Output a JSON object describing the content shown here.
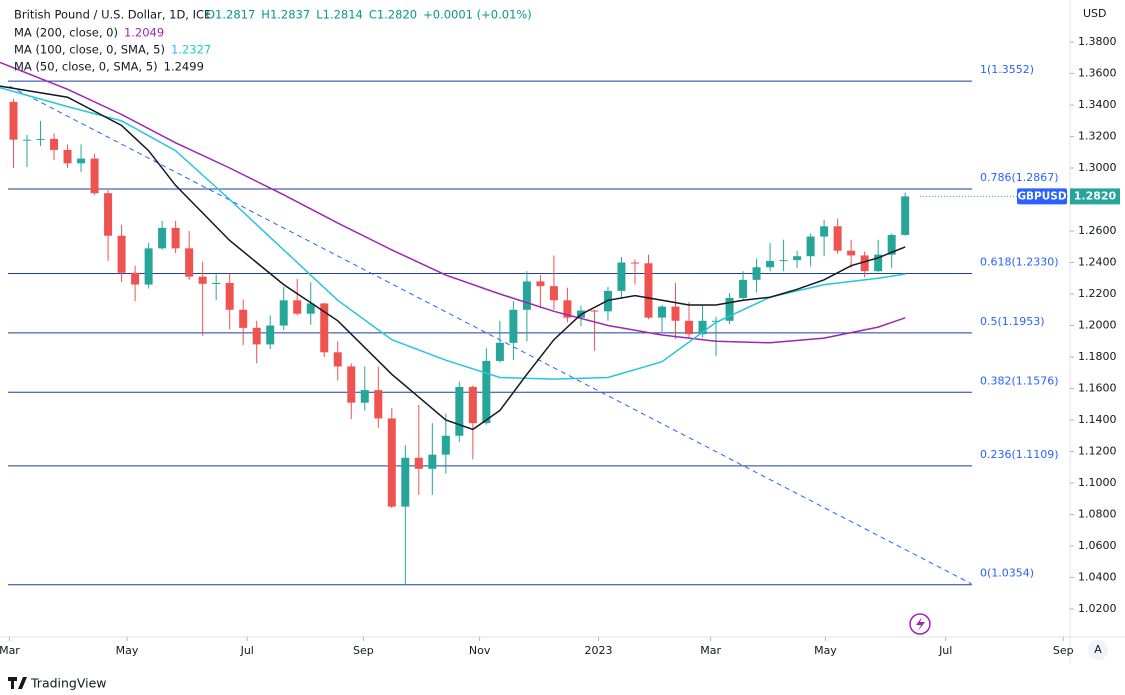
{
  "header": {
    "symbol": "British Pound / U.S. Dollar, 1D, ICE",
    "quote": [
      "O1.2817",
      "H1.2837",
      "L1.2814",
      "C1.2820",
      "+0.0001 (+0.01%)"
    ],
    "currency": "USD",
    "symbol_tag": "GBPUSD",
    "price_tag": "1.2820"
  },
  "footer": {
    "brand": "TradingView",
    "auto": "A"
  },
  "chart_data": {
    "type": "candlestick",
    "xlim": [
      -1,
      78.2
    ],
    "ylim": [
      1.0022,
      1.4067
    ],
    "xticks": [
      {
        "value": -0.3,
        "label": "Mar"
      },
      {
        "value": 8.4,
        "label": "May"
      },
      {
        "value": 17.3,
        "label": "Jul"
      },
      {
        "value": 25.9,
        "label": "Sep"
      },
      {
        "value": 34.5,
        "label": "Nov"
      },
      {
        "value": 43.3,
        "label": "2023"
      },
      {
        "value": 51.6,
        "label": "Mar"
      },
      {
        "value": 60.1,
        "label": "May"
      },
      {
        "value": 69,
        "label": "Jul"
      },
      {
        "value": 77.7,
        "label": "Sep"
      }
    ],
    "yticks": [
      {
        "value": 1.02,
        "label": "1.0200"
      },
      {
        "value": 1.04,
        "label": "1.0400"
      },
      {
        "value": 1.06,
        "label": "1.0600"
      },
      {
        "value": 1.08,
        "label": "1.0800"
      },
      {
        "value": 1.1,
        "label": "1.1000"
      },
      {
        "value": 1.12,
        "label": "1.1200"
      },
      {
        "value": 1.14,
        "label": "1.1400"
      },
      {
        "value": 1.16,
        "label": "1.1600"
      },
      {
        "value": 1.18,
        "label": "1.1800"
      },
      {
        "value": 1.2,
        "label": "1.2000"
      },
      {
        "value": 1.22,
        "label": "1.2200"
      },
      {
        "value": 1.24,
        "label": "1.2400"
      },
      {
        "value": 1.26,
        "label": "1.2600"
      },
      {
        "value": 1.28,
        "label": "1.2800"
      },
      {
        "value": 1.3,
        "label": "1.3000"
      },
      {
        "value": 1.32,
        "label": "1.3200"
      },
      {
        "value": 1.34,
        "label": "1.3400"
      },
      {
        "value": 1.36,
        "label": "1.3600"
      },
      {
        "value": 1.38,
        "label": "1.3800"
      }
    ],
    "up_color": "#26a69a",
    "down_color": "#ef5350",
    "ohlc": [
      [
        1.342,
        1.344,
        1.3,
        1.318
      ],
      [
        1.318,
        1.321,
        1.3005,
        1.318
      ],
      [
        1.318,
        1.33,
        1.314,
        1.3185
      ],
      [
        1.3185,
        1.322,
        1.305,
        1.3115
      ],
      [
        1.3115,
        1.315,
        1.3,
        1.303
      ],
      [
        1.303,
        1.315,
        1.2975,
        1.306
      ],
      [
        1.306,
        1.309,
        1.283,
        1.284
      ],
      [
        1.284,
        1.286,
        1.241,
        1.257
      ],
      [
        1.257,
        1.264,
        1.2275,
        1.2335
      ],
      [
        1.2335,
        1.238,
        1.2155,
        1.226
      ],
      [
        1.226,
        1.2525,
        1.2235,
        1.249
      ],
      [
        1.249,
        1.2665,
        1.248,
        1.262
      ],
      [
        1.262,
        1.2665,
        1.246,
        1.249
      ],
      [
        1.249,
        1.26,
        1.229,
        1.231
      ],
      [
        1.231,
        1.2405,
        1.1935,
        1.2265
      ],
      [
        1.2265,
        1.2325,
        1.216,
        1.227
      ],
      [
        1.227,
        1.233,
        1.1975,
        1.21
      ],
      [
        1.21,
        1.2165,
        1.1875,
        1.1985
      ],
      [
        1.1985,
        1.203,
        1.176,
        1.188
      ],
      [
        1.188,
        1.2065,
        1.185,
        1.2
      ],
      [
        1.2,
        1.2245,
        1.197,
        1.216
      ],
      [
        1.216,
        1.2295,
        1.2065,
        1.2075
      ],
      [
        1.2075,
        1.2275,
        1.2005,
        1.214
      ],
      [
        1.214,
        1.2145,
        1.18,
        1.183
      ],
      [
        1.183,
        1.19,
        1.165,
        1.174
      ],
      [
        1.174,
        1.176,
        1.1405,
        1.151
      ],
      [
        1.151,
        1.174,
        1.146,
        1.159
      ],
      [
        1.159,
        1.174,
        1.135,
        1.141
      ],
      [
        1.141,
        1.1475,
        1.084,
        1.085
      ],
      [
        1.085,
        1.124,
        1.0354,
        1.116
      ],
      [
        1.116,
        1.1495,
        1.0925,
        1.109
      ],
      [
        1.109,
        1.138,
        1.0925,
        1.118
      ],
      [
        1.118,
        1.144,
        1.106,
        1.13
      ],
      [
        1.13,
        1.1645,
        1.126,
        1.161
      ],
      [
        1.161,
        1.162,
        1.115,
        1.138
      ],
      [
        1.138,
        1.1855,
        1.137,
        1.1775
      ],
      [
        1.1775,
        1.203,
        1.1765,
        1.189
      ],
      [
        1.189,
        1.2155,
        1.178,
        1.21
      ],
      [
        1.21,
        1.2345,
        1.19,
        1.228
      ],
      [
        1.228,
        1.232,
        1.211,
        1.225
      ],
      [
        1.225,
        1.2445,
        1.21,
        1.216
      ],
      [
        1.216,
        1.224,
        1.202,
        1.205
      ],
      [
        1.205,
        1.2125,
        1.1995,
        1.2095
      ],
      [
        1.2095,
        1.21,
        1.184,
        1.209
      ],
      [
        1.209,
        1.2245,
        1.203,
        1.222
      ],
      [
        1.222,
        1.2435,
        1.217,
        1.24
      ],
      [
        1.24,
        1.242,
        1.226,
        1.2395
      ],
      [
        1.2395,
        1.245,
        1.204,
        1.205
      ],
      [
        1.205,
        1.213,
        1.196,
        1.212
      ],
      [
        1.212,
        1.227,
        1.1915,
        1.203
      ],
      [
        1.203,
        1.215,
        1.1925,
        1.1945
      ],
      [
        1.1945,
        1.213,
        1.1925,
        1.203
      ],
      [
        1.203,
        1.2055,
        1.1805,
        1.203
      ],
      [
        1.203,
        1.2205,
        1.201,
        1.2175
      ],
      [
        1.2175,
        1.2345,
        1.2165,
        1.229
      ],
      [
        1.229,
        1.2425,
        1.221,
        1.237
      ],
      [
        1.237,
        1.2525,
        1.2345,
        1.241
      ],
      [
        1.241,
        1.2545,
        1.2345,
        1.2415
      ],
      [
        1.2415,
        1.2475,
        1.2365,
        1.244
      ],
      [
        1.244,
        1.2585,
        1.2375,
        1.2565
      ],
      [
        1.2565,
        1.267,
        1.244,
        1.263
      ],
      [
        1.263,
        1.268,
        1.2455,
        1.2475
      ],
      [
        1.2475,
        1.2545,
        1.2365,
        1.2445
      ],
      [
        1.2445,
        1.247,
        1.2305,
        1.2345
      ],
      [
        1.2345,
        1.2545,
        1.234,
        1.245
      ],
      [
        1.245,
        1.2585,
        1.2365,
        1.2575
      ],
      [
        1.2575,
        1.2845,
        1.257,
        1.282
      ]
    ],
    "series": [
      {
        "name": "MA (200, close, 0)",
        "last": "1.2049",
        "color": "#9c27b0",
        "x": [
          -1,
          4,
          8,
          12,
          16,
          20,
          24,
          28,
          32,
          36,
          40,
          44,
          48,
          52,
          56,
          60,
          64,
          66
        ],
        "values": [
          1.367,
          1.35,
          1.334,
          1.316,
          1.3,
          1.283,
          1.265,
          1.248,
          1.232,
          1.22,
          1.209,
          1.2,
          1.194,
          1.19,
          1.189,
          1.192,
          1.199,
          1.2049
        ]
      },
      {
        "name": "MA (100, close, 0, SMA, 5)",
        "last": "1.2327",
        "color": "#26c6da",
        "x": [
          -1,
          4,
          8,
          12,
          16,
          20,
          24,
          28,
          32,
          36,
          40,
          44,
          48,
          52,
          56,
          60,
          64,
          66
        ],
        "values": [
          1.351,
          1.339,
          1.33,
          1.311,
          1.28,
          1.248,
          1.216,
          1.191,
          1.178,
          1.167,
          1.166,
          1.167,
          1.177,
          1.202,
          1.218,
          1.226,
          1.23,
          1.2327
        ]
      },
      {
        "name": "MA (50, close, 0, SMA, 5)",
        "last": "1.2499",
        "color": "#131722",
        "x": [
          -1,
          4,
          8,
          10,
          12,
          16,
          20,
          24,
          28,
          32,
          34,
          36,
          38,
          40,
          42,
          44,
          46,
          48,
          50,
          52,
          54,
          56,
          58,
          60,
          62,
          64,
          66
        ],
        "values": [
          1.352,
          1.345,
          1.327,
          1.311,
          1.289,
          1.254,
          1.226,
          1.203,
          1.169,
          1.14,
          1.134,
          1.146,
          1.169,
          1.191,
          1.207,
          1.216,
          1.219,
          1.216,
          1.213,
          1.213,
          1.216,
          1.218,
          1.223,
          1.229,
          1.238,
          1.243,
          1.2499
        ]
      }
    ],
    "trendline": {
      "x": [
        -0.3,
        70.9
      ],
      "values": [
        1.352,
        1.036
      ],
      "color": "#2962ff"
    },
    "fib_levels": [
      {
        "value": 1.3552,
        "label": "1(1.3552)"
      },
      {
        "value": 1.2867,
        "label": "0.786(1.2867)"
      },
      {
        "value": 1.233,
        "label": "0.618(1.2330)"
      },
      {
        "value": 1.1953,
        "label": "0.5(1.1953)"
      },
      {
        "value": 1.1576,
        "label": "0.382(1.1576)"
      },
      {
        "value": 1.1109,
        "label": "0.236(1.1109)"
      },
      {
        "value": 1.0354,
        "label": "0(1.0354)"
      }
    ],
    "fib_color": "#1e3f9e",
    "last_close": 1.282,
    "tag_color": "#2962ff"
  }
}
